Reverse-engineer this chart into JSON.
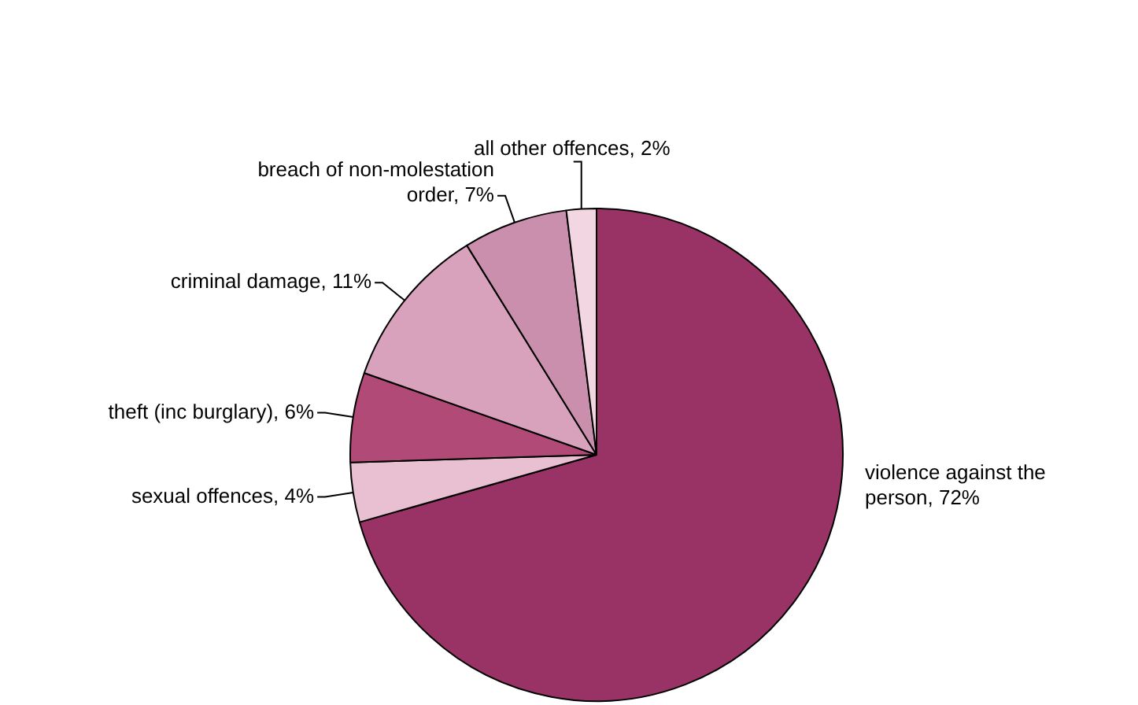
{
  "chart_data": {
    "type": "pie",
    "categories": [
      "violence against the person",
      "sexual offences",
      "theft (inc burglary)",
      "criminal damage",
      "breach of non-molestation order",
      "all other offences"
    ],
    "values": [
      72,
      4,
      6,
      11,
      7,
      2
    ],
    "value_labels": [
      "72%",
      "4%",
      "6%",
      "11%",
      "7%",
      "2%"
    ],
    "colors": [
      "#993366",
      "#e9bfd2",
      "#b24a78",
      "#d8a2bc",
      "#c98fac",
      "#f2d6e2"
    ],
    "legend": false
  }
}
